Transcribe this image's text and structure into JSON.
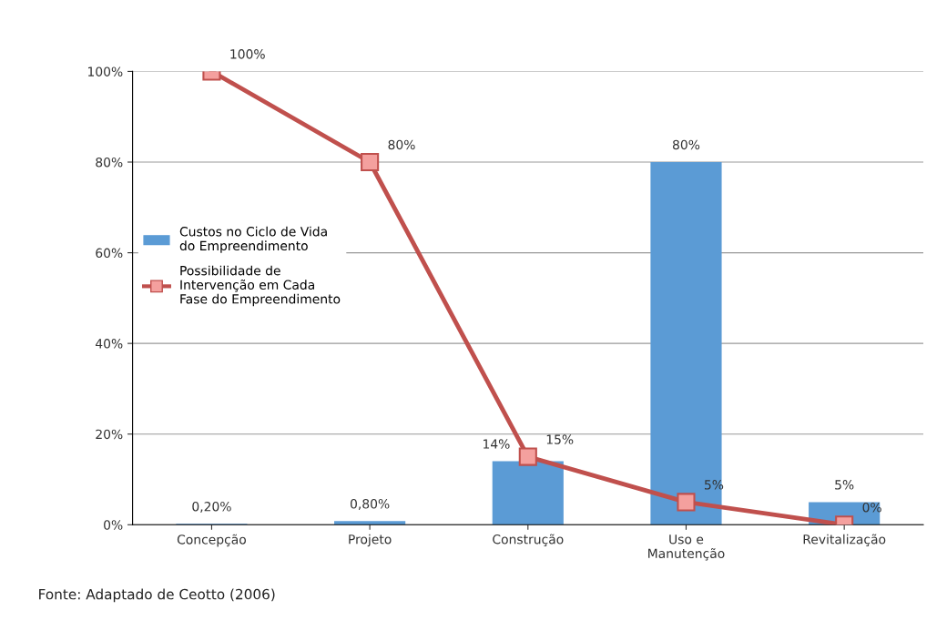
{
  "chart_data": {
    "type": "bar",
    "categories": [
      "Concepção",
      "Projeto",
      "Construção",
      "Uso e\nManutenção",
      "Revitalização"
    ],
    "series": [
      {
        "name": "Custos no Ciclo de Vida\ndo Empreendimento",
        "color": "#5b9bd5",
        "values": [
          0.2,
          0.8,
          14,
          80,
          5
        ],
        "value_labels": [
          "0,20%",
          "0,80%",
          "14%",
          "80%",
          "5%"
        ]
      },
      {
        "name": "Possibilidade de\nIntervenção em Cada\nFase do Empreendimento",
        "type": "line",
        "color": "#c0504d",
        "marker": "square",
        "values": [
          100,
          80,
          15,
          5,
          0
        ],
        "value_labels": [
          "100%",
          "80%",
          "15%",
          "5%",
          "0%"
        ]
      }
    ],
    "ylim": [
      0,
      100
    ],
    "yticks": [
      {
        "value": 0,
        "label": "0%"
      },
      {
        "value": 20,
        "label": "20%"
      },
      {
        "value": 40,
        "label": "40%"
      },
      {
        "value": 60,
        "label": "60%"
      },
      {
        "value": 80,
        "label": "80%"
      },
      {
        "value": 100,
        "label": "100%"
      }
    ],
    "grid": "y",
    "legend": "left",
    "annotations": [
      "Fonte: Adaptado de Ceotto (2006)"
    ]
  }
}
